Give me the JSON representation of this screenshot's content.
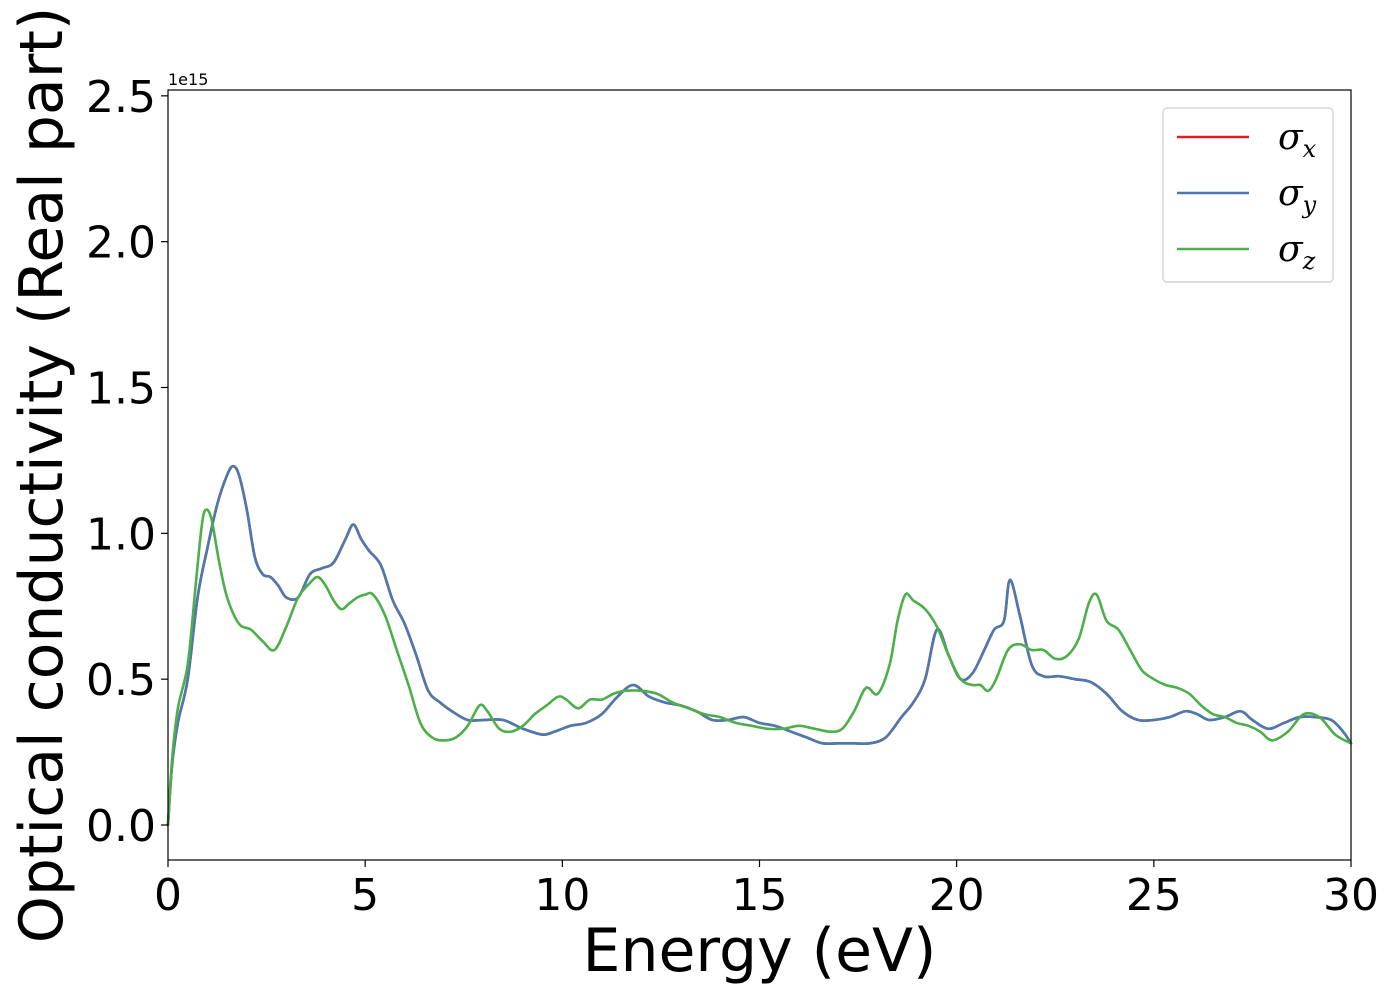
{
  "chart_data": {
    "type": "line",
    "title": "",
    "xlabel": "Energy (eV)",
    "ylabel": "Optical conductivity (Real part)",
    "y_offset_label": "1e15",
    "xlim": [
      0,
      30
    ],
    "ylim": [
      -0.12,
      2.52
    ],
    "x_ticks": [
      0,
      5,
      10,
      15,
      20,
      25,
      30
    ],
    "x_tick_labels": [
      "0",
      "5",
      "10",
      "15",
      "20",
      "25",
      "30"
    ],
    "y_ticks": [
      0.0,
      0.5,
      1.0,
      1.5,
      2.0,
      2.5
    ],
    "y_tick_labels": [
      "0.0",
      "0.5",
      "1.0",
      "1.5",
      "2.0",
      "2.5"
    ],
    "grid": false,
    "legend_position": "top-right",
    "series": [
      {
        "name": "σx",
        "symbol": "σ",
        "subscript": "x",
        "color": "#e41a1c",
        "x": [
          0,
          0.1,
          0.25,
          0.5,
          0.75,
          1.0,
          1.25,
          1.5,
          1.65,
          1.8,
          2.0,
          2.2,
          2.4,
          2.6,
          2.8,
          3.0,
          3.3,
          3.6,
          3.9,
          4.2,
          4.5,
          4.7,
          4.9,
          5.1,
          5.4,
          5.7,
          6.0,
          6.3,
          6.6,
          6.9,
          7.2,
          7.6,
          8.0,
          8.5,
          9.0,
          9.5,
          9.8,
          10.2,
          10.6,
          11.0,
          11.4,
          11.8,
          12.2,
          12.6,
          13.0,
          13.4,
          13.8,
          14.2,
          14.6,
          15.0,
          15.4,
          15.8,
          16.2,
          16.6,
          17.0,
          17.4,
          17.8,
          18.2,
          18.6,
          18.9,
          19.2,
          19.5,
          19.8,
          20.1,
          20.4,
          20.7,
          20.95,
          21.2,
          21.35,
          21.6,
          21.9,
          22.2,
          22.6,
          23.0,
          23.4,
          23.8,
          24.2,
          24.6,
          25.0,
          25.4,
          25.8,
          26.1,
          26.4,
          26.8,
          27.2,
          27.5,
          27.9,
          28.3,
          28.7,
          29.1,
          29.5,
          29.8,
          30.0
        ],
        "y": [
          0.0,
          0.2,
          0.35,
          0.5,
          0.78,
          0.95,
          1.1,
          1.2,
          1.23,
          1.2,
          1.08,
          0.92,
          0.86,
          0.85,
          0.82,
          0.78,
          0.78,
          0.86,
          0.88,
          0.9,
          0.98,
          1.03,
          0.98,
          0.94,
          0.89,
          0.77,
          0.69,
          0.58,
          0.46,
          0.42,
          0.39,
          0.36,
          0.36,
          0.36,
          0.33,
          0.31,
          0.32,
          0.34,
          0.35,
          0.38,
          0.44,
          0.48,
          0.44,
          0.42,
          0.41,
          0.39,
          0.36,
          0.36,
          0.37,
          0.35,
          0.34,
          0.32,
          0.3,
          0.28,
          0.28,
          0.28,
          0.28,
          0.3,
          0.37,
          0.42,
          0.5,
          0.67,
          0.58,
          0.5,
          0.52,
          0.6,
          0.67,
          0.7,
          0.84,
          0.72,
          0.55,
          0.51,
          0.51,
          0.5,
          0.49,
          0.45,
          0.39,
          0.36,
          0.36,
          0.37,
          0.39,
          0.38,
          0.36,
          0.37,
          0.39,
          0.36,
          0.33,
          0.35,
          0.37,
          0.37,
          0.36,
          0.32,
          0.28
        ]
      },
      {
        "name": "σy",
        "symbol": "σ",
        "subscript": "y",
        "color": "#4a7ab0",
        "x": [
          0,
          0.1,
          0.25,
          0.5,
          0.75,
          1.0,
          1.25,
          1.5,
          1.65,
          1.8,
          2.0,
          2.2,
          2.4,
          2.6,
          2.8,
          3.0,
          3.3,
          3.6,
          3.9,
          4.2,
          4.5,
          4.7,
          4.9,
          5.1,
          5.4,
          5.7,
          6.0,
          6.3,
          6.6,
          6.9,
          7.2,
          7.6,
          8.0,
          8.5,
          9.0,
          9.5,
          9.8,
          10.2,
          10.6,
          11.0,
          11.4,
          11.8,
          12.2,
          12.6,
          13.0,
          13.4,
          13.8,
          14.2,
          14.6,
          15.0,
          15.4,
          15.8,
          16.2,
          16.6,
          17.0,
          17.4,
          17.8,
          18.2,
          18.6,
          18.9,
          19.2,
          19.5,
          19.8,
          20.1,
          20.4,
          20.7,
          20.95,
          21.2,
          21.35,
          21.6,
          21.9,
          22.2,
          22.6,
          23.0,
          23.4,
          23.8,
          24.2,
          24.6,
          25.0,
          25.4,
          25.8,
          26.1,
          26.4,
          26.8,
          27.2,
          27.5,
          27.9,
          28.3,
          28.7,
          29.1,
          29.5,
          29.8,
          30.0
        ],
        "y": [
          0.0,
          0.2,
          0.35,
          0.5,
          0.78,
          0.95,
          1.1,
          1.2,
          1.23,
          1.2,
          1.08,
          0.92,
          0.86,
          0.85,
          0.82,
          0.78,
          0.78,
          0.86,
          0.88,
          0.9,
          0.98,
          1.03,
          0.98,
          0.94,
          0.89,
          0.77,
          0.69,
          0.58,
          0.46,
          0.42,
          0.39,
          0.36,
          0.36,
          0.36,
          0.33,
          0.31,
          0.32,
          0.34,
          0.35,
          0.38,
          0.44,
          0.48,
          0.44,
          0.42,
          0.41,
          0.39,
          0.36,
          0.36,
          0.37,
          0.35,
          0.34,
          0.32,
          0.3,
          0.28,
          0.28,
          0.28,
          0.28,
          0.3,
          0.37,
          0.42,
          0.5,
          0.67,
          0.58,
          0.5,
          0.52,
          0.6,
          0.67,
          0.7,
          0.84,
          0.72,
          0.55,
          0.51,
          0.51,
          0.5,
          0.49,
          0.45,
          0.39,
          0.36,
          0.36,
          0.37,
          0.39,
          0.38,
          0.36,
          0.37,
          0.39,
          0.36,
          0.33,
          0.35,
          0.37,
          0.37,
          0.36,
          0.32,
          0.28
        ]
      },
      {
        "name": "σz",
        "symbol": "σ",
        "subscript": "z",
        "color": "#4daf4a",
        "x": [
          0,
          0.1,
          0.25,
          0.5,
          0.7,
          0.85,
          0.95,
          1.1,
          1.3,
          1.5,
          1.8,
          2.1,
          2.4,
          2.7,
          3.0,
          3.3,
          3.6,
          3.8,
          4.0,
          4.2,
          4.4,
          4.6,
          4.8,
          5.0,
          5.2,
          5.5,
          5.8,
          6.1,
          6.4,
          6.7,
          7.0,
          7.3,
          7.6,
          7.9,
          8.1,
          8.4,
          8.7,
          9.0,
          9.3,
          9.6,
          9.9,
          10.1,
          10.4,
          10.7,
          11.0,
          11.3,
          11.6,
          12.0,
          12.4,
          12.8,
          13.2,
          13.6,
          14.0,
          14.4,
          14.8,
          15.2,
          15.6,
          16.0,
          16.4,
          16.8,
          17.1,
          17.4,
          17.7,
          18.0,
          18.3,
          18.5,
          18.7,
          18.9,
          19.2,
          19.5,
          19.8,
          20.1,
          20.4,
          20.6,
          20.8,
          21.0,
          21.3,
          21.6,
          21.9,
          22.2,
          22.5,
          22.8,
          23.1,
          23.35,
          23.55,
          23.8,
          24.1,
          24.4,
          24.7,
          25.0,
          25.3,
          25.6,
          25.9,
          26.2,
          26.5,
          26.8,
          27.1,
          27.4,
          27.7,
          28.0,
          28.4,
          28.8,
          29.2,
          29.6,
          30.0
        ],
        "y": [
          0.0,
          0.22,
          0.4,
          0.55,
          0.82,
          1.02,
          1.08,
          1.05,
          0.9,
          0.78,
          0.69,
          0.67,
          0.63,
          0.6,
          0.68,
          0.78,
          0.83,
          0.85,
          0.82,
          0.77,
          0.74,
          0.76,
          0.78,
          0.79,
          0.79,
          0.72,
          0.6,
          0.48,
          0.35,
          0.3,
          0.29,
          0.3,
          0.34,
          0.41,
          0.39,
          0.33,
          0.32,
          0.34,
          0.38,
          0.41,
          0.44,
          0.43,
          0.4,
          0.43,
          0.43,
          0.45,
          0.46,
          0.46,
          0.45,
          0.42,
          0.4,
          0.38,
          0.37,
          0.35,
          0.34,
          0.33,
          0.33,
          0.34,
          0.33,
          0.32,
          0.33,
          0.39,
          0.47,
          0.45,
          0.55,
          0.7,
          0.79,
          0.77,
          0.74,
          0.68,
          0.58,
          0.5,
          0.48,
          0.48,
          0.46,
          0.5,
          0.6,
          0.62,
          0.6,
          0.6,
          0.57,
          0.58,
          0.64,
          0.76,
          0.79,
          0.7,
          0.67,
          0.6,
          0.53,
          0.5,
          0.48,
          0.47,
          0.45,
          0.41,
          0.38,
          0.37,
          0.35,
          0.34,
          0.32,
          0.29,
          0.32,
          0.38,
          0.37,
          0.31,
          0.28
        ]
      }
    ]
  }
}
